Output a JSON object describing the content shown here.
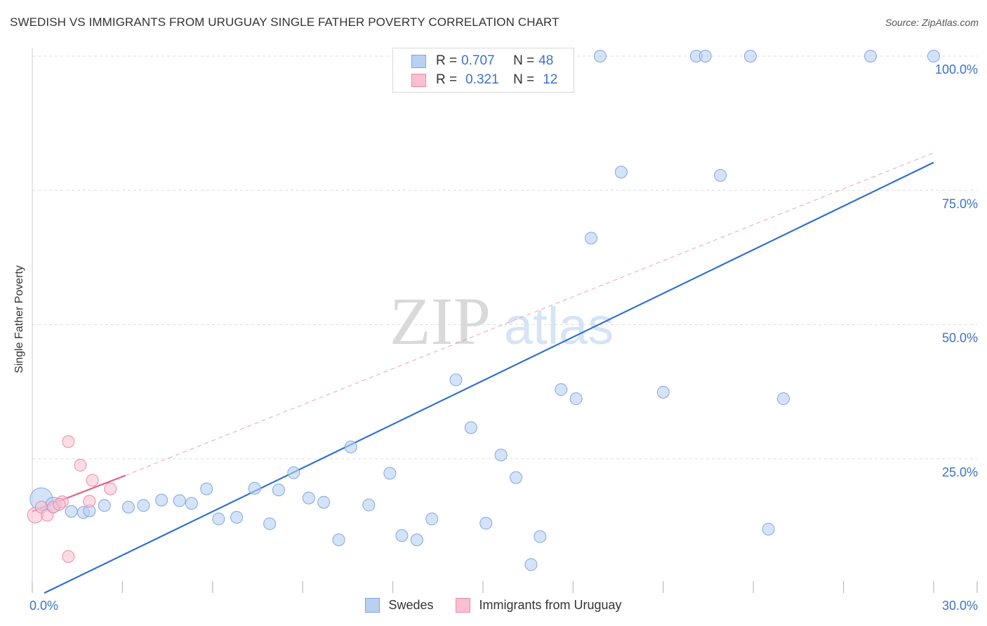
{
  "title": "SWEDISH VS IMMIGRANTS FROM URUGUAY SINGLE FATHER POVERTY CORRELATION CHART",
  "source": "Source: ZipAtlas.com",
  "watermark": {
    "zip": "ZIP",
    "atlas": "atlas"
  },
  "colors": {
    "blue_fill": "#b8d0f2",
    "blue_stroke": "#7fa7e0",
    "blue_line": "#2f6fd0",
    "pink_fill": "#f8c0d0",
    "pink_stroke": "#eb8aa8",
    "pink_line": "#e06088",
    "grid": "#dddddd",
    "axis_label": "#3a72c9"
  },
  "legend": {
    "rows": [
      {
        "r_label": "R =",
        "r_value": "0.707",
        "n_label": "N =",
        "n_value": "48"
      },
      {
        "r_label": "R =",
        "r_value": "0.321",
        "n_label": "N =",
        "n_value": "12"
      }
    ]
  },
  "bottom_legend": [
    "Swedes",
    "Immigrants from Uruguay"
  ],
  "chart_data": {
    "type": "scatter",
    "title": "SWEDISH VS IMMIGRANTS FROM URUGUAY SINGLE FATHER POVERTY CORRELATION CHART",
    "xlabel": "",
    "ylabel": "Single Father Poverty",
    "xlim": [
      0,
      30
    ],
    "ylim": [
      0,
      100
    ],
    "x_tick_labels": [
      "0.0%",
      "30.0%"
    ],
    "y_tick_labels": [
      "25.0%",
      "50.0%",
      "75.0%",
      "100.0%"
    ],
    "y_ticks": [
      25,
      50,
      75,
      100
    ],
    "series": [
      {
        "name": "Swedes",
        "r": 0.707,
        "n": 48,
        "points": [
          [
            0.3,
            17.5
          ],
          [
            1.3,
            15.2
          ],
          [
            1.7,
            15.0
          ],
          [
            1.9,
            15.3
          ],
          [
            2.4,
            16.3
          ],
          [
            3.2,
            16.0
          ],
          [
            3.7,
            16.3
          ],
          [
            4.3,
            17.3
          ],
          [
            4.9,
            17.2
          ],
          [
            5.3,
            16.7
          ],
          [
            5.8,
            19.4
          ],
          [
            6.2,
            13.8
          ],
          [
            6.8,
            14.1
          ],
          [
            7.4,
            19.5
          ],
          [
            7.9,
            12.9
          ],
          [
            8.2,
            19.2
          ],
          [
            8.7,
            22.4
          ],
          [
            9.2,
            17.7
          ],
          [
            9.7,
            16.9
          ],
          [
            10.2,
            9.9
          ],
          [
            10.6,
            27.2
          ],
          [
            11.2,
            16.4
          ],
          [
            11.9,
            22.3
          ],
          [
            12.3,
            10.7
          ],
          [
            12.8,
            9.9
          ],
          [
            13.3,
            13.8
          ],
          [
            14.1,
            39.7
          ],
          [
            14.6,
            30.8
          ],
          [
            15.1,
            13.0
          ],
          [
            15.6,
            25.7
          ],
          [
            16.1,
            21.5
          ],
          [
            16.6,
            5.3
          ],
          [
            16.9,
            10.5
          ],
          [
            17.6,
            37.9
          ],
          [
            18.1,
            36.2
          ],
          [
            18.6,
            66.1
          ],
          [
            18.9,
            100
          ],
          [
            19.6,
            78.4
          ],
          [
            21.0,
            37.4
          ],
          [
            22.1,
            100
          ],
          [
            22.4,
            100
          ],
          [
            22.9,
            77.8
          ],
          [
            23.9,
            100
          ],
          [
            24.5,
            11.9
          ],
          [
            25.0,
            36.2
          ],
          [
            27.9,
            100
          ],
          [
            30.0,
            100
          ],
          [
            0.7,
            16.4
          ]
        ],
        "trend": {
          "x": [
            0.4,
            30.0
          ],
          "y": [
            0.0,
            80.2
          ]
        }
      },
      {
        "name": "Immigrants from Uruguay",
        "r": 0.321,
        "n": 12,
        "points": [
          [
            0.1,
            14.5
          ],
          [
            0.3,
            16.0
          ],
          [
            0.5,
            14.5
          ],
          [
            0.7,
            16.0
          ],
          [
            1.0,
            17.0
          ],
          [
            1.2,
            6.8
          ],
          [
            1.2,
            28.2
          ],
          [
            1.6,
            23.8
          ],
          [
            1.9,
            17.1
          ],
          [
            2.0,
            21.0
          ],
          [
            2.6,
            19.4
          ],
          [
            0.9,
            16.5
          ]
        ],
        "trend": {
          "x": [
            0.0,
            3.1
          ],
          "y": [
            15.2,
            21.9
          ]
        },
        "trend_extension": {
          "x": [
            3.1,
            30.0
          ],
          "y": [
            21.9,
            82.0
          ]
        }
      }
    ]
  }
}
